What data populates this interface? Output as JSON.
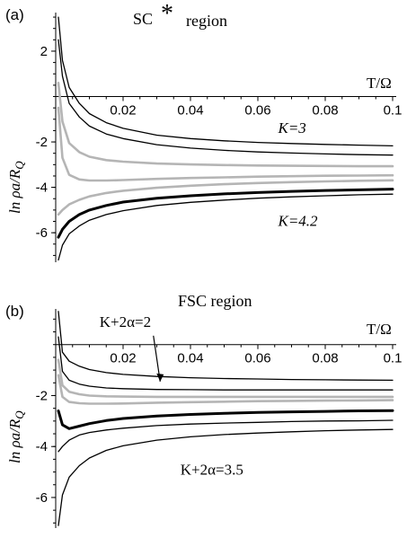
{
  "chart_data": [
    {
      "type": "line",
      "panel_label": "(a)",
      "title_main": "SC",
      "title_star": "*",
      "title_suffix": "region",
      "xlabel": "T/Ω",
      "ylabel": "ln ρa/R",
      "ylabel_sub": "Q",
      "xlim": [
        0,
        0.1
      ],
      "ylim": [
        -7.3,
        3.7
      ],
      "xticks": [
        0.02,
        0.04,
        0.06,
        0.08,
        0.1
      ],
      "xtick_labels": [
        "0.02",
        "0.04",
        "0.06",
        "0.08",
        "0.1"
      ],
      "yticks": [
        2,
        -2,
        -4,
        -6
      ],
      "ytick_labels": [
        "2",
        "-2",
        "-4",
        "-6"
      ],
      "annotations": [
        {
          "text": "K=3",
          "x": 0.066,
          "y": -1.6
        },
        {
          "text": "K=4.2",
          "x": 0.066,
          "y": -5.7
        }
      ],
      "series": [
        {
          "style": "thin",
          "x": [
            0.0008,
            0.002,
            0.004,
            0.007,
            0.01,
            0.015,
            0.02,
            0.03,
            0.04,
            0.05,
            0.06,
            0.07,
            0.08,
            0.09,
            0.1
          ],
          "y": [
            3.5,
            1.6,
            0.4,
            -0.3,
            -0.75,
            -1.15,
            -1.4,
            -1.7,
            -1.85,
            -1.95,
            -2.02,
            -2.07,
            -2.11,
            -2.14,
            -2.17
          ]
        },
        {
          "style": "thin",
          "x": [
            0.0008,
            0.002,
            0.004,
            0.007,
            0.01,
            0.015,
            0.02,
            0.03,
            0.04,
            0.05,
            0.06,
            0.07,
            0.08,
            0.09,
            0.1
          ],
          "y": [
            2.5,
            0.9,
            -0.3,
            -0.9,
            -1.3,
            -1.65,
            -1.85,
            -2.12,
            -2.27,
            -2.37,
            -2.44,
            -2.49,
            -2.53,
            -2.56,
            -2.58
          ]
        },
        {
          "style": "grey",
          "x": [
            0.0008,
            0.002,
            0.004,
            0.007,
            0.01,
            0.015,
            0.02,
            0.03,
            0.04,
            0.05,
            0.06,
            0.07,
            0.08,
            0.09,
            0.1
          ],
          "y": [
            0.6,
            -1.1,
            -2.05,
            -2.45,
            -2.65,
            -2.8,
            -2.87,
            -2.95,
            -2.99,
            -3.02,
            -3.04,
            -3.05,
            -3.06,
            -3.07,
            -3.07
          ]
        },
        {
          "style": "grey",
          "x": [
            0.0008,
            0.002,
            0.004,
            0.007,
            0.01,
            0.015,
            0.02,
            0.03,
            0.04,
            0.05,
            0.06,
            0.07,
            0.08,
            0.09,
            0.1
          ],
          "y": [
            -0.5,
            -2.7,
            -3.45,
            -3.65,
            -3.7,
            -3.7,
            -3.68,
            -3.63,
            -3.59,
            -3.56,
            -3.53,
            -3.51,
            -3.49,
            -3.48,
            -3.47
          ]
        },
        {
          "style": "grey",
          "x": [
            0.0008,
            0.002,
            0.004,
            0.007,
            0.01,
            0.015,
            0.02,
            0.03,
            0.04,
            0.05,
            0.06,
            0.07,
            0.08,
            0.09,
            0.1
          ],
          "y": [
            -5.2,
            -5.0,
            -4.75,
            -4.55,
            -4.4,
            -4.25,
            -4.15,
            -4.02,
            -3.93,
            -3.86,
            -3.81,
            -3.77,
            -3.74,
            -3.71,
            -3.69
          ]
        },
        {
          "style": "thick",
          "x": [
            0.0008,
            0.002,
            0.004,
            0.007,
            0.01,
            0.015,
            0.02,
            0.03,
            0.04,
            0.05,
            0.06,
            0.07,
            0.08,
            0.09,
            0.1
          ],
          "y": [
            -6.2,
            -5.85,
            -5.5,
            -5.2,
            -5.0,
            -4.8,
            -4.65,
            -4.48,
            -4.37,
            -4.29,
            -4.23,
            -4.18,
            -4.14,
            -4.11,
            -4.08
          ]
        },
        {
          "style": "thin",
          "x": [
            0.0008,
            0.002,
            0.004,
            0.007,
            0.01,
            0.015,
            0.02,
            0.03,
            0.04,
            0.05,
            0.06,
            0.07,
            0.08,
            0.09,
            0.1
          ],
          "y": [
            -7.2,
            -6.55,
            -6.05,
            -5.7,
            -5.45,
            -5.2,
            -5.03,
            -4.8,
            -4.66,
            -4.56,
            -4.48,
            -4.42,
            -4.37,
            -4.33,
            -4.3
          ]
        }
      ]
    },
    {
      "type": "line",
      "panel_label": "(b)",
      "title_main": "FSC region",
      "xlabel": "T/Ω",
      "ylabel": "ln ρa/R",
      "ylabel_sub": "Q",
      "xlim": [
        0,
        0.1
      ],
      "ylim": [
        -7.2,
        1.4
      ],
      "xticks": [
        0.02,
        0.04,
        0.06,
        0.08,
        0.1
      ],
      "xtick_labels": [
        "0.02",
        "0.04",
        "0.06",
        "0.08",
        "0.1"
      ],
      "yticks": [
        -2,
        -4,
        -6
      ],
      "ytick_labels": [
        "-2",
        "-4",
        "-6"
      ],
      "annotations": [
        {
          "text": "K+2α=2",
          "x": 0.013,
          "y": 0.7
        },
        {
          "text": "K+2α=3.5",
          "x": 0.037,
          "y": -5.1
        }
      ],
      "arrow": {
        "from": [
          0.029,
          0.35
        ],
        "to": [
          0.031,
          -1.45
        ]
      },
      "series": [
        {
          "style": "thin",
          "x": [
            0.0008,
            0.002,
            0.004,
            0.007,
            0.01,
            0.015,
            0.02,
            0.03,
            0.04,
            0.05,
            0.06,
            0.07,
            0.08,
            0.09,
            0.1
          ],
          "y": [
            1.3,
            -0.3,
            -0.65,
            -0.85,
            -0.98,
            -1.1,
            -1.17,
            -1.25,
            -1.3,
            -1.33,
            -1.35,
            -1.37,
            -1.38,
            -1.39,
            -1.4
          ]
        },
        {
          "style": "thin",
          "x": [
            0.0008,
            0.002,
            0.004,
            0.007,
            0.01,
            0.015,
            0.02,
            0.03,
            0.04,
            0.05,
            0.06,
            0.07,
            0.08,
            0.09,
            0.1
          ],
          "y": [
            0.3,
            -1.05,
            -1.4,
            -1.55,
            -1.63,
            -1.7,
            -1.73,
            -1.76,
            -1.77,
            -1.78,
            -1.78,
            -1.78,
            -1.78,
            -1.78,
            -1.78
          ]
        },
        {
          "style": "grey",
          "x": [
            0.0008,
            0.002,
            0.004,
            0.007,
            0.01,
            0.015,
            0.02,
            0.03,
            0.04,
            0.05,
            0.06,
            0.07,
            0.08,
            0.09,
            0.1
          ],
          "y": [
            -0.6,
            -1.6,
            -1.85,
            -1.95,
            -2.0,
            -2.03,
            -2.04,
            -2.05,
            -2.05,
            -2.05,
            -2.05,
            -2.05,
            -2.05,
            -2.05,
            -2.05
          ]
        },
        {
          "style": "grey",
          "x": [
            0.0008,
            0.002,
            0.004,
            0.007,
            0.01,
            0.015,
            0.02,
            0.03,
            0.04,
            0.05,
            0.06,
            0.07,
            0.08,
            0.09,
            0.1
          ],
          "y": [
            -1.2,
            -2.05,
            -2.25,
            -2.3,
            -2.32,
            -2.32,
            -2.31,
            -2.28,
            -2.26,
            -2.24,
            -2.22,
            -2.21,
            -2.2,
            -2.19,
            -2.18
          ]
        },
        {
          "style": "thick",
          "x": [
            0.0008,
            0.002,
            0.004,
            0.007,
            0.01,
            0.015,
            0.02,
            0.03,
            0.04,
            0.05,
            0.06,
            0.07,
            0.08,
            0.09,
            0.1
          ],
          "y": [
            -2.6,
            -3.15,
            -3.3,
            -3.2,
            -3.1,
            -2.98,
            -2.9,
            -2.8,
            -2.74,
            -2.7,
            -2.66,
            -2.64,
            -2.62,
            -2.6,
            -2.59
          ]
        },
        {
          "style": "thin",
          "x": [
            0.0008,
            0.002,
            0.004,
            0.007,
            0.01,
            0.015,
            0.02,
            0.03,
            0.04,
            0.05,
            0.06,
            0.07,
            0.08,
            0.09,
            0.1
          ],
          "y": [
            -4.2,
            -4.0,
            -3.75,
            -3.55,
            -3.45,
            -3.35,
            -3.28,
            -3.18,
            -3.12,
            -3.08,
            -3.05,
            -3.02,
            -3.0,
            -2.99,
            -2.97
          ]
        },
        {
          "style": "thin",
          "x": [
            0.0008,
            0.002,
            0.004,
            0.007,
            0.01,
            0.015,
            0.02,
            0.03,
            0.04,
            0.05,
            0.06,
            0.07,
            0.08,
            0.09,
            0.1
          ],
          "y": [
            -7.1,
            -5.9,
            -5.2,
            -4.75,
            -4.45,
            -4.15,
            -3.97,
            -3.75,
            -3.62,
            -3.53,
            -3.47,
            -3.42,
            -3.38,
            -3.35,
            -3.33
          ]
        }
      ]
    }
  ]
}
